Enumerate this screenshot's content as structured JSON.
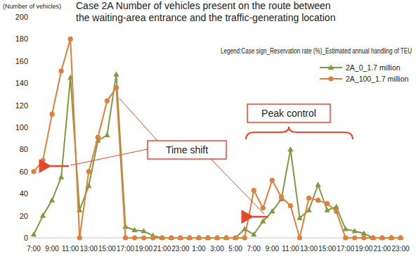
{
  "chart_data": {
    "type": "line",
    "title": [
      "Case 2A Number of vehicles present on the route between",
      "the waiting-area entrance and the traffic-generating location"
    ],
    "y_label": "(Number of vehicles)",
    "legend_title": "Legend:Case sign_Reservation rate (%)_Estimated annual handling of TEU",
    "annotations": [
      "Time shift",
      "Peak control"
    ],
    "categories": [
      "7:00",
      null,
      "9:00",
      null,
      "11:00",
      null,
      "13:00",
      null,
      "15:00",
      null,
      "17:00",
      null,
      "19:00",
      null,
      "21:00",
      null,
      "23:00",
      null,
      "1:00",
      null,
      "3:00",
      null,
      "5:00",
      null,
      "7:00",
      null,
      "9:00",
      null,
      "11:00",
      null,
      "13:00",
      null,
      "15:00",
      null,
      "17:00",
      null,
      "19:00",
      null,
      "21:00",
      null,
      "23:00"
    ],
    "series": [
      {
        "name": "2A_0_1.7 million",
        "color": "#7f9a3f",
        "marker": "triangle",
        "values": [
          3,
          20,
          34,
          55,
          145,
          25,
          47,
          88,
          93,
          148,
          10,
          7,
          6,
          2,
          0,
          0,
          0,
          0,
          0,
          0,
          0,
          0,
          0,
          8,
          3,
          15,
          24,
          35,
          80,
          18,
          25,
          48,
          25,
          28,
          8,
          6,
          4,
          0,
          0,
          0,
          0
        ]
      },
      {
        "name": "2A_100_1.7 million",
        "color": "#e07e3c",
        "marker": "circle",
        "values": [
          60,
          70,
          112,
          151,
          180,
          0,
          60,
          91,
          124,
          136,
          0,
          0,
          0,
          0,
          0,
          0,
          0,
          0,
          0,
          0,
          0,
          0,
          0,
          0,
          43,
          27,
          52,
          37,
          29,
          0,
          36,
          34,
          31,
          24,
          0,
          0,
          0,
          0,
          0,
          0,
          0
        ]
      }
    ],
    "ylim": [
      0,
      200
    ],
    "yticks": [
      0,
      20,
      40,
      60,
      80,
      100,
      120,
      140,
      160,
      180,
      200
    ],
    "grid": false,
    "legend": "upper right"
  }
}
